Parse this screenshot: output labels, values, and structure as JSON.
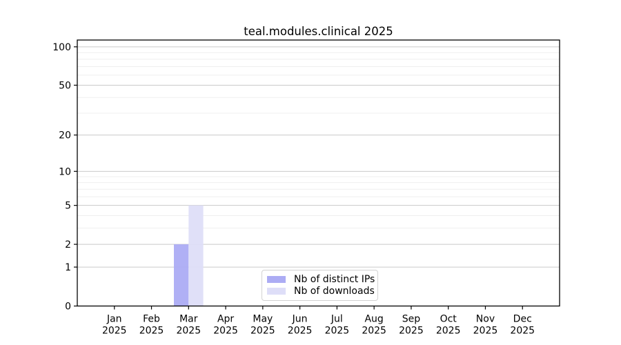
{
  "chart_data": {
    "type": "bar",
    "title": "teal.modules.clinical 2025",
    "categories": [
      "Jan",
      "Feb",
      "Mar",
      "Apr",
      "May",
      "Jun",
      "Jul",
      "Aug",
      "Sep",
      "Oct",
      "Nov",
      "Dec"
    ],
    "year": "2025",
    "series": [
      {
        "name": "Nb of distinct IPs",
        "color": "#acacf4",
        "values": [
          0,
          0,
          2,
          0,
          0,
          0,
          0,
          0,
          0,
          0,
          0,
          0
        ]
      },
      {
        "name": "Nb of downloads",
        "color": "#dedef8",
        "values": [
          0,
          0,
          5,
          0,
          0,
          0,
          0,
          0,
          0,
          0,
          0,
          0
        ]
      }
    ],
    "xlabel": "",
    "ylabel": "",
    "scale": "log1p",
    "ylim": [
      0,
      113
    ],
    "yticks": [
      0,
      1,
      2,
      5,
      10,
      20,
      50,
      100
    ],
    "minor_yticks": [
      3,
      4,
      6,
      7,
      8,
      9,
      30,
      40,
      60,
      70,
      80,
      90
    ],
    "grid": true,
    "legend_position": "lower center",
    "colors": {
      "grid_major": "#c9c9c9",
      "grid_minor": "#efefef",
      "axis": "#000000",
      "text": "#000000",
      "background": "#ffffff"
    }
  }
}
